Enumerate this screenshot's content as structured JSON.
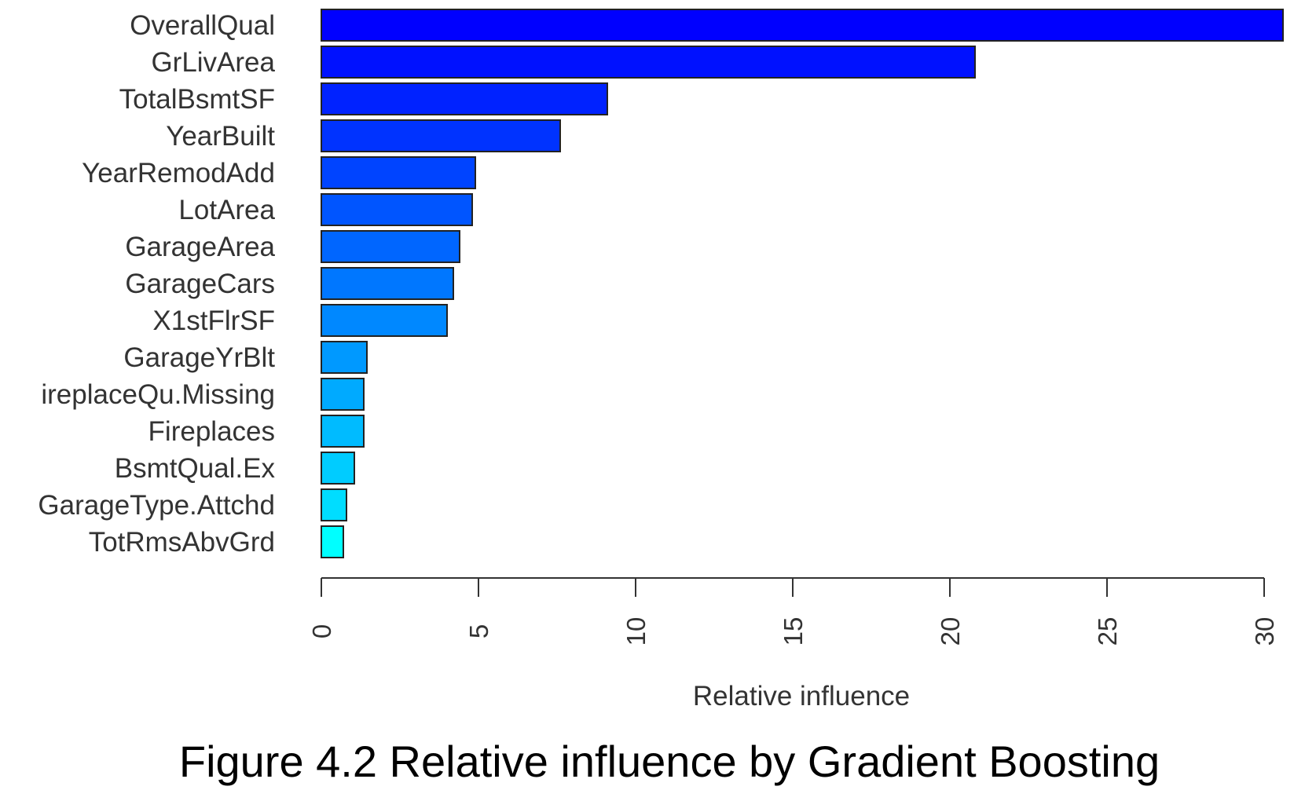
{
  "chart_data": {
    "type": "bar",
    "orientation": "horizontal",
    "categories": [
      "OverallQual",
      "GrLivArea",
      "TotalBsmtSF",
      "YearBuilt",
      "YearRemodAdd",
      "LotArea",
      "GarageArea",
      "GarageCars",
      "X1stFlrSF",
      "GarageYrBlt",
      "ireplaceQu.Missing",
      "Fireplaces",
      "BsmtQual.Ex",
      "GarageType.Attchd",
      "TotRmsAbvGrd"
    ],
    "values": [
      30.6,
      20.8,
      9.1,
      7.6,
      4.9,
      4.8,
      4.4,
      4.2,
      4.0,
      1.45,
      1.35,
      1.35,
      1.05,
      0.8,
      0.7
    ],
    "colors": [
      "#0000ff",
      "#0011ff",
      "#0022ff",
      "#0033ff",
      "#0044ff",
      "#0055ff",
      "#0066ff",
      "#0077ff",
      "#0088ff",
      "#0099ff",
      "#00aaff",
      "#00bbff",
      "#00ccff",
      "#00ddff",
      "#00ffff"
    ],
    "xlabel": "Relative influence",
    "xlim": [
      0,
      30.6
    ],
    "xticks": [
      0,
      5,
      10,
      15,
      20,
      25,
      30
    ],
    "grid": false,
    "legend": "none"
  },
  "caption": "Figure 4.2 Relative influence by Gradient Boosting"
}
